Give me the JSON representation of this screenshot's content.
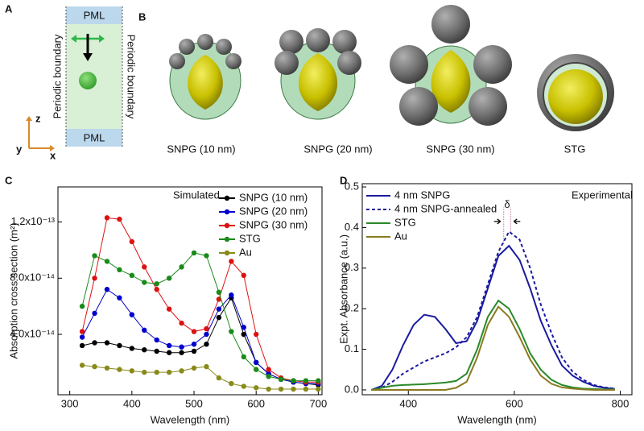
{
  "panel_a": {
    "label": "A",
    "top": "PML",
    "bottom": "PML",
    "left": "Periodic boundary",
    "right": "Periodic boundary",
    "axes": [
      "z",
      "y",
      "x"
    ]
  },
  "panel_b": {
    "label": "B",
    "captions": [
      "SNPG (10 nm)",
      "SNPG (20 nm)",
      "SNPG (30 nm)",
      "STG"
    ]
  },
  "chart_data": [
    {
      "type": "line",
      "label": "C",
      "annotation": "Simulated",
      "markers": true,
      "xlabel": "Wavelength (nm)",
      "ylabel": "Absorption cross section (m²)",
      "xlim": [
        281,
        706
      ],
      "xticks": [
        300,
        400,
        500,
        600,
        700
      ],
      "ylim": [
        -3e-15,
        1.45e-13
      ],
      "yticks": [
        {
          "value": 4e-14,
          "label": "4.0x10⁻¹⁴"
        },
        {
          "value": 8e-14,
          "label": "8.0x10⁻¹⁴"
        },
        {
          "value": 1.2e-13,
          "label": "1.2x10⁻¹³"
        }
      ],
      "legend": "upper right",
      "x": [
        320,
        340,
        360,
        380,
        400,
        420,
        440,
        460,
        480,
        500,
        520,
        540,
        560,
        580,
        600,
        620,
        640,
        660,
        680,
        700
      ],
      "series": [
        {
          "name": "SNPG (10 nm)",
          "color": "#000000",
          "values": [
            3.2e-14,
            3.4e-14,
            3.4e-14,
            3.2e-14,
            3e-14,
            2.9e-14,
            2.8e-14,
            2.7e-14,
            2.7e-14,
            2.8e-14,
            3.3e-14,
            5.2e-14,
            6.6e-14,
            4e-14,
            2e-14,
            1.2e-14,
            8e-15,
            6e-15,
            5e-15,
            4e-15
          ]
        },
        {
          "name": "SNPG (20 nm)",
          "color": "#0000cc",
          "values": [
            3.8e-14,
            5.5e-14,
            7.2e-14,
            6.6e-14,
            5.4e-14,
            4.3e-14,
            3.6e-14,
            3.2e-14,
            3.1e-14,
            3.3e-14,
            4e-14,
            5.8e-14,
            6.8e-14,
            4.5e-14,
            2e-14,
            1.2e-14,
            8e-15,
            6e-15,
            5e-15,
            5e-15
          ]
        },
        {
          "name": "SNPG (30 nm)",
          "color": "#dd1111",
          "values": [
            4.2e-14,
            8e-14,
            1.23e-13,
            1.22e-13,
            1.06e-13,
            8.8e-14,
            7.2e-14,
            5.8e-14,
            4.8e-14,
            4.2e-14,
            4.4e-14,
            6.5e-14,
            9.2e-14,
            8.2e-14,
            4e-14,
            1.5e-14,
            9e-15,
            7e-15,
            6e-15,
            6e-15
          ]
        },
        {
          "name": "STG",
          "color": "#1a8a1a",
          "values": [
            6e-14,
            9.6e-14,
            9.2e-14,
            8.6e-14,
            8.2e-14,
            7.7e-14,
            7.6e-14,
            8e-14,
            8.8e-14,
            9.8e-14,
            9.6e-14,
            7e-14,
            4.2e-14,
            2.4e-14,
            1.5e-14,
            1e-14,
            8e-15,
            7e-15,
            7e-15,
            7e-15
          ]
        },
        {
          "name": "Au",
          "color": "#8a8a1a",
          "values": [
            1.8e-14,
            1.7e-14,
            1.6e-14,
            1.5e-14,
            1.4e-14,
            1.3e-14,
            1.3e-14,
            1.3e-14,
            1.4e-14,
            1.6e-14,
            1.7e-14,
            9e-15,
            5e-15,
            3e-15,
            2e-15,
            1e-15,
            1e-15,
            1e-15,
            1e-15,
            1e-15
          ]
        }
      ]
    },
    {
      "type": "line",
      "label": "D",
      "annotation": "Experimental",
      "delta_label": "δ",
      "markers": false,
      "xlabel": "Wavelength (nm)",
      "ylabel": "Expt. Absorbance (a.u.)",
      "xlim": [
        313,
        822
      ],
      "xticks": [
        400,
        600,
        800
      ],
      "ylim": [
        -0.012,
        0.508
      ],
      "yticks": [
        {
          "value": 0,
          "label": "0.0"
        },
        0.1,
        0.2,
        0.3,
        0.4,
        0.5
      ],
      "legend": "upper left",
      "x": [
        330,
        350,
        370,
        390,
        410,
        430,
        450,
        470,
        490,
        510,
        530,
        550,
        570,
        590,
        610,
        630,
        650,
        670,
        690,
        710,
        730,
        750,
        770,
        790
      ],
      "series": [
        {
          "name": "4 nm SNPG",
          "color": "#1a1aa0",
          "dash": false,
          "values": [
            0.0,
            0.01,
            0.05,
            0.11,
            0.16,
            0.185,
            0.18,
            0.15,
            0.115,
            0.12,
            0.17,
            0.25,
            0.33,
            0.355,
            0.32,
            0.25,
            0.17,
            0.11,
            0.06,
            0.035,
            0.02,
            0.01,
            0.005,
            0.002
          ]
        },
        {
          "name": "4 nm SNPG-annealed",
          "color": "#1a1aa0",
          "dash": true,
          "values": [
            0.0,
            0.005,
            0.02,
            0.04,
            0.055,
            0.07,
            0.08,
            0.09,
            0.105,
            0.13,
            0.18,
            0.26,
            0.34,
            0.39,
            0.37,
            0.3,
            0.21,
            0.14,
            0.08,
            0.045,
            0.025,
            0.012,
            0.006,
            0.003
          ]
        },
        {
          "name": "STG",
          "color": "#2a8a2a",
          "dash": false,
          "values": [
            0.0,
            0.005,
            0.01,
            0.012,
            0.013,
            0.014,
            0.016,
            0.018,
            0.022,
            0.04,
            0.1,
            0.18,
            0.22,
            0.2,
            0.15,
            0.09,
            0.05,
            0.025,
            0.012,
            0.006,
            0.003,
            0.002,
            0.001,
            0.001
          ]
        },
        {
          "name": "Au",
          "color": "#8a7a20",
          "dash": false,
          "values": [
            0.0,
            0.0,
            0.0,
            0.0,
            0.0,
            0.0,
            0.0,
            0.0,
            0.005,
            0.02,
            0.08,
            0.16,
            0.205,
            0.18,
            0.13,
            0.075,
            0.035,
            0.015,
            0.006,
            0.003,
            0.001,
            0.0,
            0.0,
            0.0
          ]
        }
      ]
    }
  ]
}
